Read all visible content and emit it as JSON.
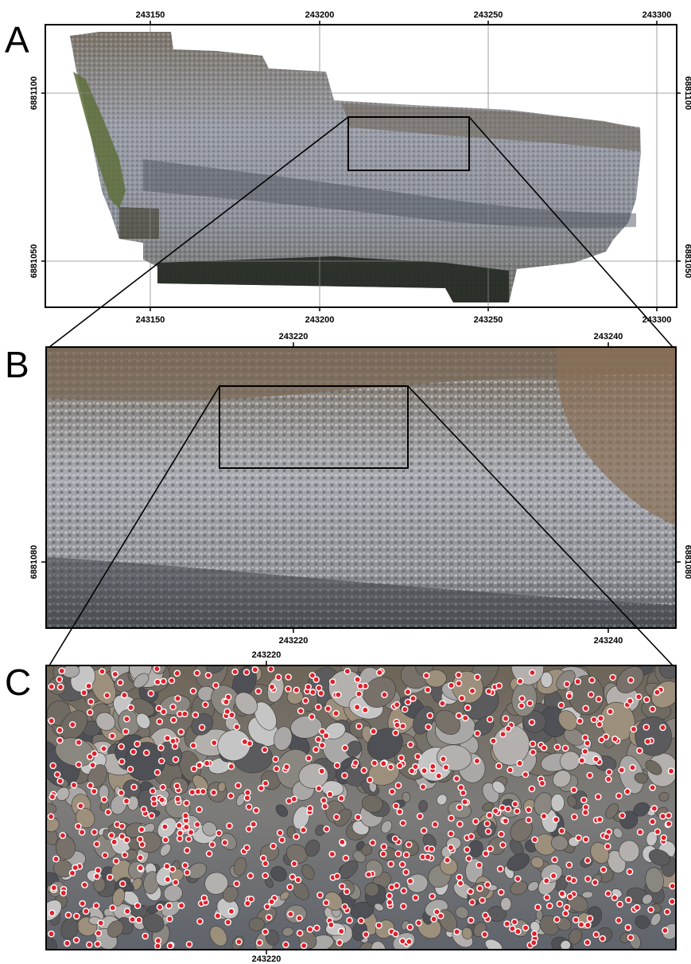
{
  "figure": {
    "panels": [
      {
        "id": "A",
        "label": "A",
        "x_ticks_top": [
          "243150",
          "243200",
          "243250",
          "243300"
        ],
        "x_ticks_bottom": [
          "243150",
          "243200",
          "243250",
          "243300"
        ],
        "y_ticks_left": [
          "6881100",
          "6881050"
        ],
        "y_ticks_right": [
          "6881100",
          "6881050"
        ]
      },
      {
        "id": "B",
        "label": "B",
        "x_ticks_top": [
          "243220",
          "243240"
        ],
        "x_ticks_bottom": [
          "243220",
          "243240"
        ],
        "y_ticks_left": [
          "6881080"
        ],
        "y_ticks_right": [
          "6881080"
        ]
      },
      {
        "id": "C",
        "label": "C",
        "x_ticks_top": [
          "243220"
        ],
        "x_ticks_bottom": [
          "243220"
        ]
      }
    ],
    "colors": {
      "frame": "#000000",
      "grid": "#8a8a8a",
      "marker": "#e0202a",
      "marker_ring": "#ffffff",
      "orthomosaic_gravel": "#8f939b",
      "cobbles": "#7a6a58",
      "vegetation": "#5f6f3c",
      "water": "#232a22"
    }
  }
}
